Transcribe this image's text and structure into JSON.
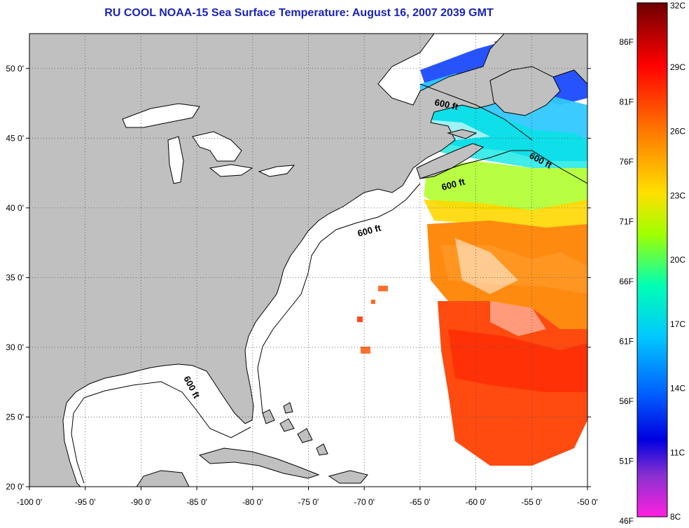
{
  "title": "RU COOL  NOAA-15  Sea Surface Temperature:  August 16, 2007 2039 GMT",
  "map": {
    "lon_range": [
      -100,
      -50
    ],
    "lat_range": [
      20,
      52.5
    ],
    "lon_ticks": [
      -100,
      -95,
      -90,
      -85,
      -80,
      -75,
      -70,
      -65,
      -60,
      -55,
      -50
    ],
    "lon_tick_labels": [
      "-100 0'",
      "-95 0'",
      "-90 0'",
      "-85 0'",
      "-80 0'",
      "-75 0'",
      "-70 0'",
      "-65 0'",
      "-60 0'",
      "-55 0'",
      "-50 0'"
    ],
    "lat_ticks": [
      20,
      25,
      30,
      35,
      40,
      45,
      50
    ],
    "lat_tick_labels": [
      "20 0'",
      "25 0'",
      "30 0'",
      "35 0'",
      "40 0'",
      "45 0'",
      "50 0'"
    ],
    "grid": "dotted",
    "land_color": "#c0c0c0",
    "ocean_color": "#ffffff",
    "isobath_label": "600 ft"
  },
  "colorbar": {
    "celsius_labels": [
      "32C",
      "29C",
      "26C",
      "23C",
      "20C",
      "17C",
      "14C",
      "11C",
      "8C"
    ],
    "fahrenheit_labels": [
      "86F",
      "81F",
      "76F",
      "71F",
      "66F",
      "61F",
      "56F",
      "51F",
      "46F"
    ],
    "colors": [
      "#7a0000",
      "#ff0000",
      "#ff7a00",
      "#ffd200",
      "#c8ff00",
      "#3cff6e",
      "#00e0ff",
      "#0070ff",
      "#0000ff",
      "#7a30d8",
      "#ff20d0"
    ]
  }
}
